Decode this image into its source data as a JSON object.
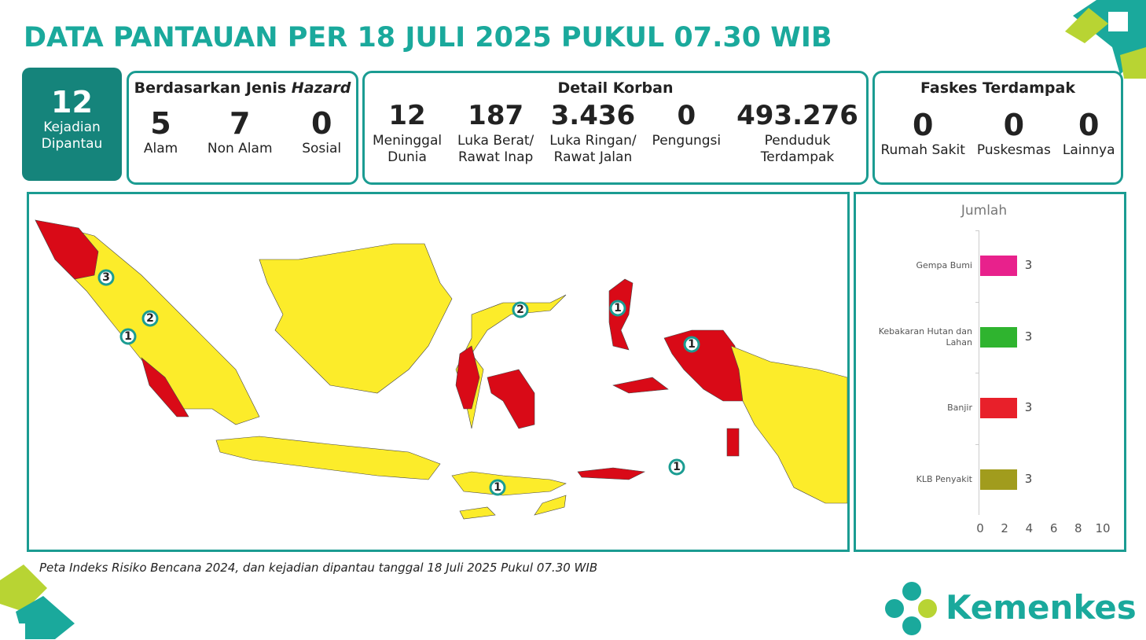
{
  "title": "DATA PANTAUAN PER 18 JULI 2025 PUKUL 07.30 WIB",
  "summary": {
    "value": "12",
    "label": [
      "Kejadian",
      "Dipantau"
    ]
  },
  "hazard": {
    "title": "Berdasarkan Jenis",
    "title_emph": "Hazard",
    "items": [
      {
        "value": "5",
        "label": "Alam"
      },
      {
        "value": "7",
        "label": "Non Alam"
      },
      {
        "value": "0",
        "label": "Sosial"
      }
    ]
  },
  "korban": {
    "title": "Detail Korban",
    "items": [
      {
        "value": "12",
        "label": [
          "Meninggal",
          "Dunia"
        ]
      },
      {
        "value": "187",
        "label": [
          "Luka Berat/",
          "Rawat Inap"
        ]
      },
      {
        "value": "3.436",
        "label": [
          "Luka Ringan/",
          "Rawat Jalan"
        ]
      },
      {
        "value": "0",
        "label": [
          "Pengungsi"
        ]
      },
      {
        "value": "493.276",
        "label": [
          "Penduduk",
          "Terdampak"
        ]
      }
    ]
  },
  "faskes": {
    "title": "Faskes Terdampak",
    "items": [
      {
        "value": "0",
        "label": "Rumah Sakit"
      },
      {
        "value": "0",
        "label": "Puskesmas"
      },
      {
        "value": "0",
        "label": "Lainnya"
      }
    ]
  },
  "map": {
    "markers": [
      3,
      2,
      1,
      2,
      1,
      1,
      1,
      1
    ],
    "caption": "Peta Indeks Risiko Bencana 2024, dan kejadian dipantau tanggal 18 Juli 2025 Pukul 07.30 WIB"
  },
  "chart_data": {
    "type": "bar",
    "orientation": "horizontal",
    "title": "Jumlah",
    "categories": [
      "Gempa Bumi",
      "Kebakaran Hutan dan Lahan",
      "Banjir",
      "KLB Penyakit"
    ],
    "values": [
      3,
      3,
      3,
      3
    ],
    "colors": [
      "#e8218c",
      "#2fb42f",
      "#e8202a",
      "#a19c1d"
    ],
    "xlim": [
      0,
      10
    ],
    "xticks": [
      0,
      2,
      4,
      6,
      8,
      10
    ]
  },
  "logo": "Kemenkes"
}
